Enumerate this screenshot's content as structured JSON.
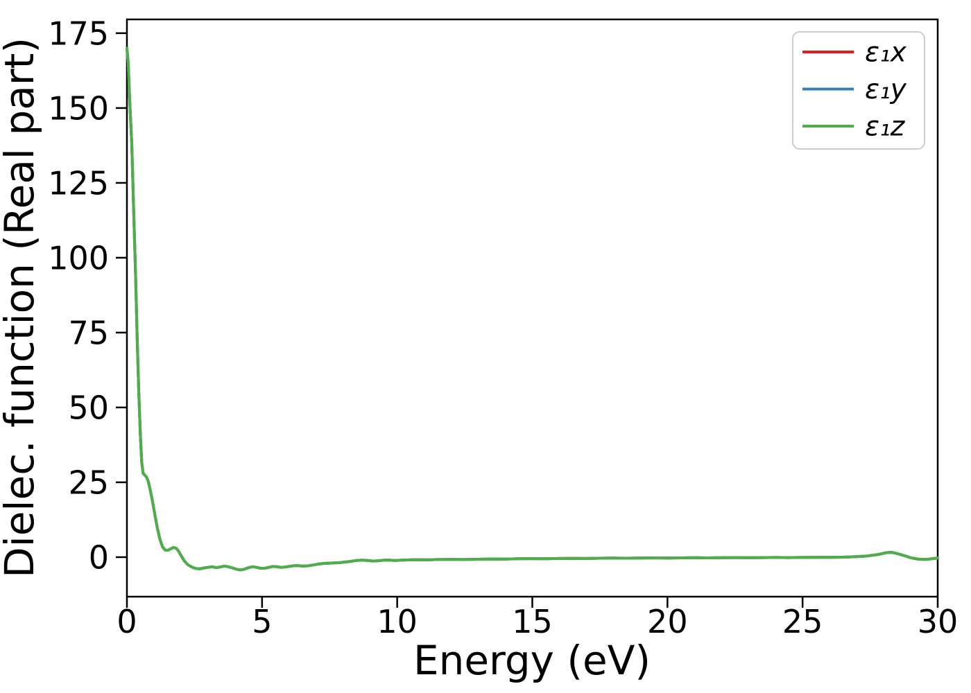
{
  "figure": {
    "background_color": "#ffffff",
    "spine_color": "#000000",
    "legend_border_color": "#cccccc",
    "legend_background": "#ffffff"
  },
  "chart_data": {
    "type": "line",
    "title": "",
    "xlabel": "Energy (eV)",
    "ylabel": "Dielec. function (Real part)",
    "xlim": [
      0,
      30
    ],
    "ylim": [
      -13.2,
      179.6
    ],
    "xticks": [
      0,
      5,
      10,
      15,
      20,
      25,
      30
    ],
    "yticks": [
      0,
      25,
      50,
      75,
      100,
      125,
      150,
      175
    ],
    "grid": false,
    "legend_position": "upper right",
    "note": "All three curves (e1x, e1y, e1z) overlap almost exactly; the green e1z curve drawn last is the one visible.",
    "series": [
      {
        "id": "e1x",
        "name": "ε₁x",
        "color": "#e41a1c"
      },
      {
        "id": "e1y",
        "name": "ε₁y",
        "color": "#377eb8"
      },
      {
        "id": "e1z",
        "name": "ε₁z",
        "color": "#4daf4a"
      }
    ],
    "x": [
      0,
      0.05,
      0.1,
      0.18,
      0.25,
      0.32,
      0.38,
      0.44,
      0.5,
      0.55,
      0.6,
      0.66,
      0.72,
      0.78,
      0.85,
      0.93,
      1.02,
      1.12,
      1.22,
      1.32,
      1.42,
      1.52,
      1.62,
      1.72,
      1.82,
      1.92,
      2.02,
      2.12,
      2.25,
      2.4,
      2.55,
      2.7,
      2.85,
      3,
      3.15,
      3.3,
      3.45,
      3.6,
      3.75,
      3.9,
      4.05,
      4.2,
      4.35,
      4.5,
      4.65,
      4.8,
      4.95,
      5.1,
      5.25,
      5.4,
      5.55,
      5.7,
      5.85,
      6,
      6.15,
      6.3,
      6.5,
      6.7,
      6.9,
      7.1,
      7.3,
      7.5,
      7.7,
      7.9,
      8.1,
      8.3,
      8.5,
      8.7,
      8.9,
      9.1,
      9.3,
      9.5,
      9.7,
      9.9,
      10.2,
      10.5,
      10.8,
      11.1,
      11.5,
      12,
      12.5,
      13,
      13.5,
      14,
      14.5,
      15,
      15.5,
      16,
      16.5,
      17,
      17.5,
      18,
      18.5,
      19,
      19.5,
      20,
      20.5,
      21,
      21.5,
      22,
      22.5,
      23,
      23.5,
      24,
      24.5,
      25,
      25.5,
      26,
      26.5,
      27,
      27.4,
      27.8,
      28.1,
      28.3,
      28.5,
      28.8,
      29,
      29.3,
      29.6,
      29.8,
      30
    ],
    "y": [
      170,
      165,
      153,
      138,
      116,
      94,
      73,
      55,
      40,
      31.5,
      28,
      27.4,
      26.8,
      25.6,
      23,
      19.5,
      15,
      10,
      6,
      3.4,
      2.3,
      2.3,
      2.8,
      3.2,
      3,
      1.9,
      0.3,
      -1.2,
      -2.5,
      -3.3,
      -3.8,
      -3.9,
      -3.6,
      -3.4,
      -3.2,
      -3.5,
      -3.3,
      -3,
      -3.2,
      -3.6,
      -4,
      -4.3,
      -4,
      -3.5,
      -3.2,
      -3.4,
      -3.7,
      -3.7,
      -3.4,
      -3.1,
      -3.2,
      -3.4,
      -3.3,
      -3.1,
      -2.9,
      -2.8,
      -3,
      -2.9,
      -2.6,
      -2.3,
      -2.1,
      -2,
      -1.9,
      -1.8,
      -1.6,
      -1.4,
      -1.1,
      -1,
      -1.1,
      -1.3,
      -1.2,
      -1,
      -1,
      -1.1,
      -1,
      -0.9,
      -0.85,
      -0.9,
      -0.8,
      -0.75,
      -0.8,
      -0.7,
      -0.6,
      -0.65,
      -0.55,
      -0.5,
      -0.55,
      -0.45,
      -0.4,
      -0.45,
      -0.35,
      -0.3,
      -0.35,
      -0.3,
      -0.25,
      -0.3,
      -0.25,
      -0.2,
      -0.25,
      -0.2,
      -0.15,
      -0.2,
      -0.15,
      -0.1,
      -0.15,
      -0.1,
      -0.05,
      -0.05,
      0,
      0.15,
      0.4,
      0.9,
      1.5,
      1.6,
      1.2,
      0.4,
      -0.2,
      -0.7,
      -0.75,
      -0.5,
      -0.3
    ]
  }
}
